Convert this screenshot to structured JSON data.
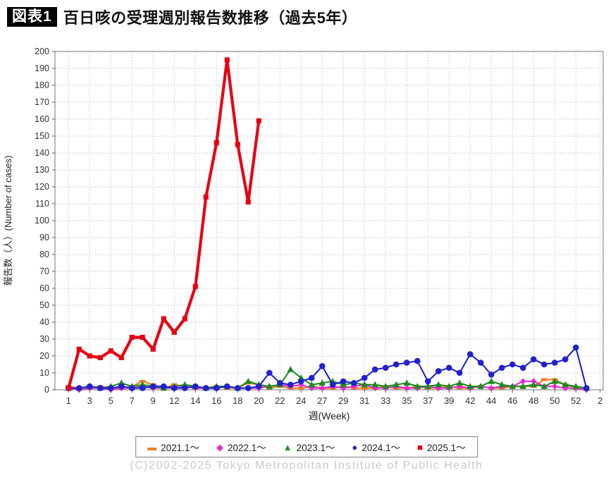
{
  "title": {
    "badge": "図表1",
    "text": "百日咳の受理週別報告数推移（過去5年）"
  },
  "footer": "(C)2002-2025 Tokyo Metropolitan Institute of Public Health",
  "chart_data": {
    "type": "line",
    "title": "百日咳の受理週別報告数推移（過去5年）",
    "xlabel": "週(Week)",
    "ylabel": "報告数（人）(Number of cases)",
    "grid": true,
    "legend_position": "bottom",
    "y_axis": {
      "min": 0,
      "max": 200,
      "step": 10
    },
    "x_axis": {
      "tick_labels": [
        "1",
        "3",
        "5",
        "7",
        "9",
        "12",
        "14",
        "16",
        "18",
        "20",
        "22",
        "24",
        "27",
        "29",
        "31",
        "33",
        "35",
        "37",
        "39",
        "42",
        "44",
        "46",
        "48",
        "50",
        "52",
        "2"
      ],
      "tick_columns": [
        1,
        3,
        5,
        7,
        9,
        11,
        13,
        15,
        17,
        19,
        21,
        23,
        25,
        27,
        29,
        31,
        33,
        35,
        37,
        39,
        41,
        43,
        45,
        47,
        49,
        51.3
      ]
    },
    "series": [
      {
        "name": "2021.1～",
        "color": "#ee7f22",
        "marker": "dash",
        "values": [
          2,
          1,
          1,
          2,
          1,
          1,
          2,
          5,
          3,
          1,
          3,
          2,
          1,
          1,
          2,
          1,
          1,
          4,
          3,
          1,
          2,
          1,
          1,
          2,
          1,
          1,
          2,
          1,
          1,
          1,
          2,
          1,
          1,
          2,
          1,
          1,
          2,
          1,
          1,
          2,
          1,
          1,
          2,
          2,
          2,
          6,
          6,
          3,
          1,
          1
        ]
      },
      {
        "name": "2022.1～",
        "color": "#e32bd3",
        "marker": "diamond",
        "values": [
          1,
          0,
          1,
          1,
          0,
          1,
          1,
          2,
          1,
          1,
          1,
          2,
          1,
          1,
          1,
          2,
          1,
          1,
          1,
          2,
          3,
          2,
          3,
          1,
          1,
          2,
          1,
          2,
          3,
          1,
          1,
          2,
          1,
          1,
          2,
          1,
          1,
          2,
          1,
          2,
          1,
          2,
          2,
          5,
          5,
          2,
          2,
          1,
          1,
          0
        ]
      },
      {
        "name": "2023.1～",
        "color": "#1e8b22",
        "marker": "triangle",
        "values": [
          1,
          1,
          2,
          1,
          2,
          4,
          2,
          3,
          2,
          1,
          2,
          3,
          2,
          1,
          2,
          2,
          1,
          5,
          3,
          2,
          3,
          12,
          7,
          3,
          4,
          5,
          3,
          4,
          3,
          3,
          2,
          3,
          4,
          2,
          2,
          3,
          2,
          4,
          2,
          2,
          5,
          3,
          2,
          2,
          3,
          2,
          5,
          3,
          2,
          1
        ]
      },
      {
        "name": "2024.1～",
        "color": "#2121cf",
        "marker": "circle",
        "values": [
          1,
          1,
          2,
          1,
          1,
          2,
          1,
          1,
          2,
          2,
          1,
          1,
          2,
          1,
          1,
          2,
          1,
          1,
          2,
          10,
          4,
          3,
          5,
          7,
          14,
          3,
          5,
          4,
          7,
          12,
          13,
          15,
          16,
          17,
          5,
          11,
          13,
          10,
          21,
          16,
          9,
          13,
          15,
          13,
          18,
          15,
          16,
          18,
          25,
          1
        ]
      },
      {
        "name": "2025.1～",
        "color": "#e60012",
        "marker": "square",
        "thick": true,
        "values": [
          1,
          24,
          20,
          19,
          23,
          19,
          31,
          31,
          24,
          42,
          34,
          42,
          61,
          114,
          146,
          195,
          145,
          111,
          159
        ]
      }
    ]
  }
}
